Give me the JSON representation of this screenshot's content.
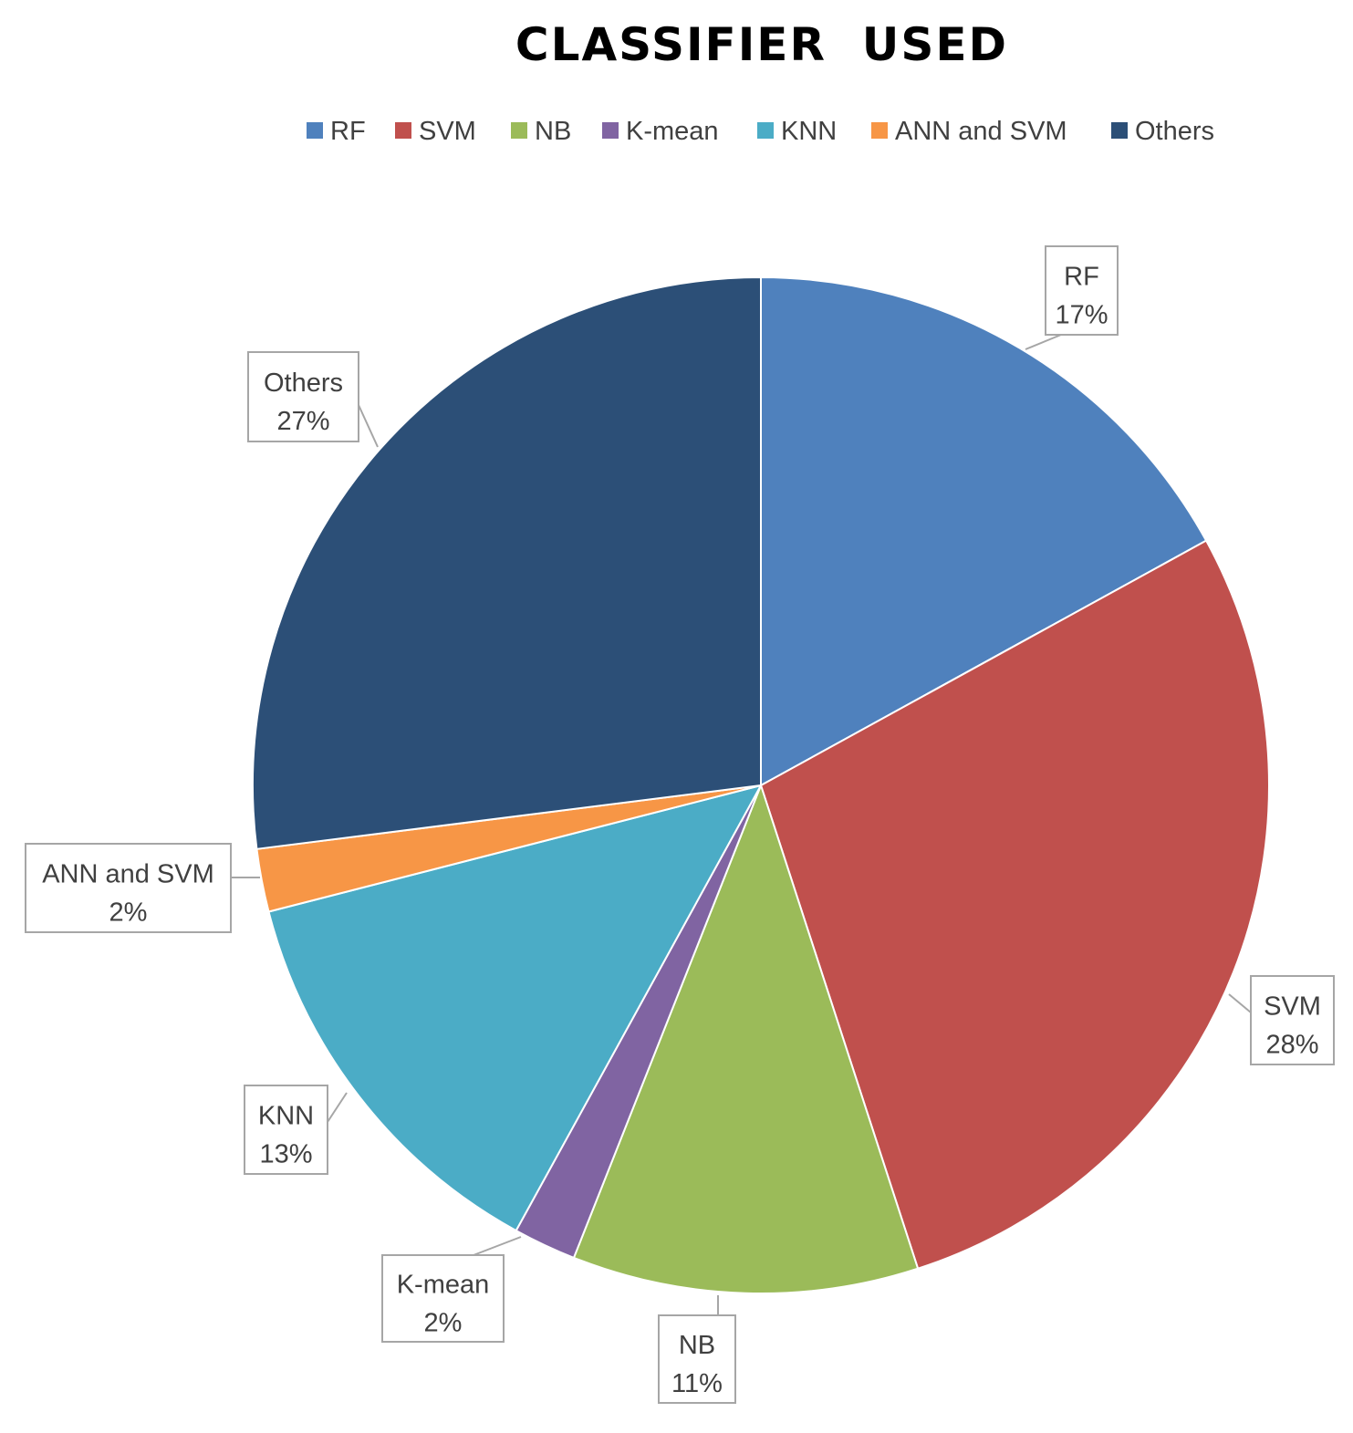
{
  "chart_data": {
    "type": "pie",
    "title": "CLASSIFIER  USED",
    "legend_position": "top",
    "start_angle_deg": 0,
    "direction": "clockwise",
    "slices": [
      {
        "name": "RF",
        "value": 17,
        "label": "17%",
        "color": "#4f81bd"
      },
      {
        "name": "SVM",
        "value": 28,
        "label": "28%",
        "color": "#c0504d"
      },
      {
        "name": "NB",
        "value": 11,
        "label": "11%",
        "color": "#9bbb59"
      },
      {
        "name": "K-mean",
        "value": 2,
        "label": "2%",
        "color": "#8064a2"
      },
      {
        "name": "KNN",
        "value": 13,
        "label": "13%",
        "color": "#4bacc6"
      },
      {
        "name": "ANN and SVM",
        "value": 2,
        "label": "2%",
        "color": "#f79646"
      },
      {
        "name": "Others",
        "value": 27,
        "label": "27%",
        "color": "#2c4f77"
      }
    ]
  }
}
